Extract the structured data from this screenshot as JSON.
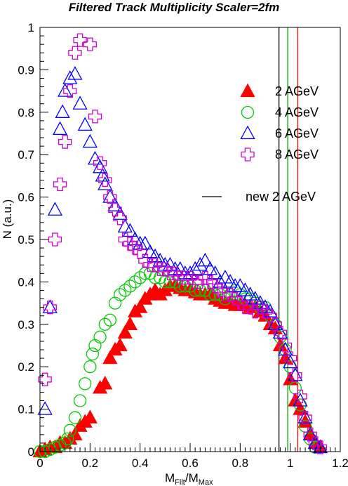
{
  "chart_data": {
    "type": "scatter",
    "title": "Filtered Track Multiplicity Scaler=2fm",
    "xlabel_main": "M",
    "xlabel_sub1": "Filt",
    "xlabel_mid": "/M",
    "xlabel_sub2": "Max",
    "ylabel": "N (a.u.)",
    "xlim": [
      0,
      1.2
    ],
    "ylim": [
      0,
      1
    ],
    "xticks": [
      "0",
      "0.2",
      "0.4",
      "0.6",
      "0.8",
      "1",
      "1.2"
    ],
    "yticks": [
      "0",
      "0.1",
      "0.2",
      "0.3",
      "0.4",
      "0.5",
      "0.6",
      "0.7",
      "0.8",
      "0.9",
      "1"
    ],
    "grid": false,
    "legend_position": "right",
    "series": [
      {
        "name": "2 AGeV",
        "marker": "filled-triangle",
        "color": "#ff0000",
        "x": [
          0.0,
          0.02,
          0.04,
          0.06,
          0.08,
          0.1,
          0.12,
          0.14,
          0.16,
          0.18,
          0.2,
          0.24,
          0.26,
          0.28,
          0.3,
          0.32,
          0.34,
          0.36,
          0.38,
          0.4,
          0.42,
          0.44,
          0.46,
          0.48,
          0.5,
          0.52,
          0.54,
          0.56,
          0.58,
          0.6,
          0.62,
          0.64,
          0.66,
          0.68,
          0.7,
          0.72,
          0.74,
          0.76,
          0.78,
          0.8,
          0.82,
          0.84,
          0.86,
          0.88,
          0.9,
          0.92,
          0.94,
          0.96,
          0.98,
          1.0,
          1.02,
          1.04,
          1.06,
          1.08,
          1.1,
          1.12
        ],
        "y": [
          0.0,
          0.005,
          0.01,
          0.01,
          0.02,
          0.02,
          0.03,
          0.04,
          0.06,
          0.07,
          0.08,
          0.15,
          0.16,
          0.22,
          0.24,
          0.25,
          0.28,
          0.3,
          0.33,
          0.34,
          0.36,
          0.37,
          0.38,
          0.37,
          0.38,
          0.39,
          0.39,
          0.385,
          0.38,
          0.38,
          0.375,
          0.37,
          0.37,
          0.37,
          0.36,
          0.355,
          0.35,
          0.35,
          0.345,
          0.345,
          0.345,
          0.34,
          0.34,
          0.33,
          0.32,
          0.3,
          0.29,
          0.25,
          0.22,
          0.17,
          0.12,
          0.1,
          0.07,
          0.04,
          0.02,
          0.01
        ]
      },
      {
        "name": "4 AGeV",
        "marker": "open-circle",
        "color": "#00cc00",
        "x": [
          0.0,
          0.02,
          0.04,
          0.06,
          0.08,
          0.1,
          0.11,
          0.12,
          0.14,
          0.16,
          0.18,
          0.2,
          0.21,
          0.22,
          0.24,
          0.26,
          0.28,
          0.3,
          0.32,
          0.34,
          0.36,
          0.38,
          0.4,
          0.42,
          0.44,
          0.46,
          0.48,
          0.5,
          0.52,
          0.54,
          0.56,
          0.58,
          0.6,
          0.62,
          0.64,
          0.66,
          0.68,
          0.7,
          0.72,
          0.74,
          0.76,
          0.78,
          0.8,
          0.82,
          0.84,
          0.86,
          0.88,
          0.9,
          0.92,
          0.94,
          0.96,
          0.98,
          1.0,
          1.02,
          1.04,
          1.06,
          1.08,
          1.1
        ],
        "y": [
          0.0,
          0.0,
          0.005,
          0.01,
          0.015,
          0.02,
          0.03,
          0.05,
          0.08,
          0.12,
          0.16,
          0.2,
          0.23,
          0.25,
          0.27,
          0.3,
          0.31,
          0.35,
          0.37,
          0.38,
          0.39,
          0.4,
          0.41,
          0.42,
          0.42,
          0.41,
          0.41,
          0.4,
          0.4,
          0.4,
          0.39,
          0.39,
          0.39,
          0.38,
          0.38,
          0.38,
          0.37,
          0.37,
          0.37,
          0.36,
          0.37,
          0.38,
          0.37,
          0.36,
          0.36,
          0.35,
          0.34,
          0.34,
          0.32,
          0.3,
          0.27,
          0.24,
          0.2,
          0.15,
          0.11,
          0.06,
          0.03,
          0.01
        ]
      },
      {
        "name": "6 AGeV",
        "marker": "open-triangle",
        "color": "#0000ff",
        "x": [
          0.02,
          0.04,
          0.06,
          0.08,
          0.09,
          0.1,
          0.12,
          0.14,
          0.16,
          0.18,
          0.2,
          0.22,
          0.24,
          0.25,
          0.26,
          0.28,
          0.3,
          0.32,
          0.34,
          0.36,
          0.38,
          0.4,
          0.42,
          0.44,
          0.46,
          0.48,
          0.5,
          0.52,
          0.54,
          0.56,
          0.58,
          0.6,
          0.62,
          0.64,
          0.66,
          0.68,
          0.7,
          0.72,
          0.74,
          0.76,
          0.78,
          0.8,
          0.82,
          0.84,
          0.86,
          0.88,
          0.9,
          0.92,
          0.94,
          0.96,
          0.98,
          1.0,
          1.02,
          1.04,
          1.06,
          1.08,
          1.1,
          1.12
        ],
        "y": [
          0.1,
          0.34,
          0.57,
          0.76,
          0.8,
          0.85,
          0.88,
          0.89,
          0.82,
          0.77,
          0.73,
          0.69,
          0.67,
          0.65,
          0.63,
          0.6,
          0.58,
          0.56,
          0.53,
          0.52,
          0.5,
          0.49,
          0.49,
          0.47,
          0.46,
          0.45,
          0.44,
          0.44,
          0.43,
          0.43,
          0.42,
          0.42,
          0.43,
          0.44,
          0.45,
          0.43,
          0.42,
          0.4,
          0.41,
          0.4,
          0.39,
          0.39,
          0.38,
          0.37,
          0.36,
          0.35,
          0.34,
          0.33,
          0.3,
          0.28,
          0.24,
          0.21,
          0.18,
          0.12,
          0.08,
          0.04,
          0.02,
          0.01
        ]
      },
      {
        "name": "8 AGeV",
        "marker": "open-cross",
        "color": "#cc00cc",
        "x": [
          0.02,
          0.04,
          0.06,
          0.08,
          0.1,
          0.12,
          0.14,
          0.16,
          0.2,
          0.22,
          0.24,
          0.26,
          0.28,
          0.3,
          0.32,
          0.34,
          0.36,
          0.38,
          0.4,
          0.42,
          0.44,
          0.46,
          0.48,
          0.5,
          0.52,
          0.54,
          0.56,
          0.58,
          0.6,
          0.62,
          0.64,
          0.66,
          0.68,
          0.7,
          0.72,
          0.74,
          0.76,
          0.78,
          0.8,
          0.82,
          0.84,
          0.86,
          0.88,
          0.9,
          0.92,
          0.94,
          0.96,
          0.98,
          1.0,
          1.02,
          1.04,
          1.06,
          1.08,
          1.1,
          1.12
        ],
        "y": [
          0.17,
          0.34,
          0.5,
          0.63,
          0.73,
          0.85,
          0.94,
          0.97,
          0.96,
          0.79,
          0.68,
          0.64,
          0.6,
          0.57,
          0.55,
          0.5,
          0.49,
          0.48,
          0.47,
          0.45,
          0.44,
          0.44,
          0.43,
          0.43,
          0.42,
          0.42,
          0.41,
          0.41,
          0.41,
          0.4,
          0.4,
          0.41,
          0.4,
          0.39,
          0.38,
          0.37,
          0.37,
          0.36,
          0.35,
          0.34,
          0.34,
          0.33,
          0.34,
          0.33,
          0.32,
          0.3,
          0.28,
          0.25,
          0.22,
          0.18,
          0.13,
          0.08,
          0.04,
          0.02,
          0.01
        ]
      }
    ],
    "extra_legend": {
      "name": "new 2 AGeV",
      "marker": "line",
      "color": "#000000"
    },
    "vertical_lines": [
      {
        "x": 0.955,
        "color": "#000000"
      },
      {
        "x": 0.99,
        "color": "#00aa00"
      },
      {
        "x": 1.03,
        "color": "#ff0000"
      }
    ]
  }
}
